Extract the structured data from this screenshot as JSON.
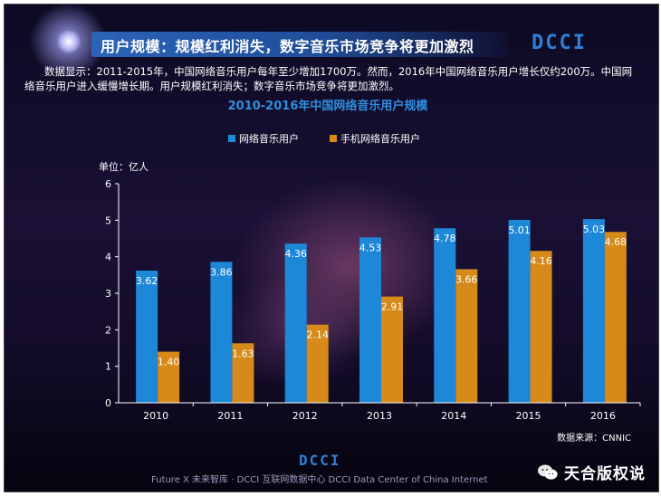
{
  "header": {
    "title": "用户规模：规模红利消失，数字音乐市场竞争将更加激烈",
    "logo": "DCCI"
  },
  "description": "数据显示：2011-2015年，中国网络音乐用户每年至少增加1700万。然而，2016年中国网络音乐用户增长仅约200万。中国网络音乐用户进入缓慢增长期。用户规模红利消失；数字音乐市场竞争将更加激烈。",
  "chart_data": {
    "type": "bar",
    "title": "2010-2016年中国网络音乐用户规模",
    "unit_label": "单位：亿人",
    "categories": [
      "2010",
      "2011",
      "2012",
      "2013",
      "2014",
      "2015",
      "2016"
    ],
    "series": [
      {
        "name": "网络音乐用户",
        "color": "#1e88d8",
        "values": [
          3.62,
          3.86,
          4.36,
          4.53,
          4.78,
          5.01,
          5.03
        ]
      },
      {
        "name": "手机网络音乐用户",
        "color": "#d58a1a",
        "values": [
          1.4,
          1.63,
          2.14,
          2.91,
          3.66,
          4.16,
          4.68
        ]
      }
    ],
    "ylim": [
      0,
      6
    ],
    "yticks": [
      0,
      1,
      2,
      3,
      4,
      5,
      6
    ],
    "legend": "top-center",
    "source": "数据来源：CNNIC"
  },
  "footer": {
    "logo": "DCCI",
    "text": "Future X 未来智库 · DCCI 互联网数据中心  DCCI Data Center of China Internet",
    "wechat_label": "天合版权说"
  }
}
